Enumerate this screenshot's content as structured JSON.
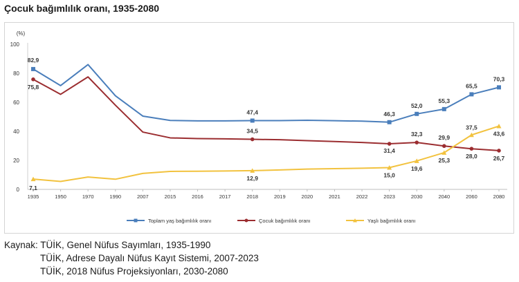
{
  "title": "Çocuk bağımlılık oranı, 1935-2080",
  "chart_data": {
    "type": "line",
    "unit_label": "(%)",
    "categories": [
      "1935",
      "1950",
      "1970",
      "1990",
      "2007",
      "2015",
      "2016",
      "2017",
      "2018",
      "2019",
      "2020",
      "2021",
      "2022",
      "2023",
      "2030",
      "2040",
      "2060",
      "2080"
    ],
    "ylim": [
      0,
      100
    ],
    "yticks": [
      0,
      20,
      40,
      60,
      80,
      100
    ],
    "grid": false,
    "legend_position": "bottom",
    "series": [
      {
        "name": "Toplam yaş bağımlılık oranı",
        "color": "#4a7ebb",
        "marker": "square",
        "values": [
          82.9,
          71.5,
          86.0,
          64.5,
          50.5,
          47.5,
          47.2,
          47.2,
          47.4,
          47.4,
          47.6,
          47.3,
          47.0,
          46.3,
          52.0,
          55.3,
          65.5,
          70.3
        ],
        "labels": [
          "82,9",
          null,
          null,
          null,
          null,
          null,
          null,
          null,
          "47,4",
          null,
          null,
          null,
          null,
          "46,3",
          "52,0",
          "55,3",
          "65,5",
          "70,3"
        ]
      },
      {
        "name": "Çocuk bağımlılık oranı",
        "color": "#9b2d30",
        "marker": "circle",
        "values": [
          75.8,
          65.5,
          77.5,
          58.0,
          39.5,
          35.5,
          35.0,
          34.8,
          34.5,
          34.2,
          33.6,
          33.0,
          32.3,
          31.4,
          32.3,
          29.9,
          28.0,
          26.7
        ],
        "labels": [
          "75,8",
          null,
          null,
          null,
          null,
          null,
          null,
          null,
          "34,5",
          null,
          null,
          null,
          null,
          "31,4",
          "32,3",
          "29,9",
          "28,0",
          "26,7"
        ]
      },
      {
        "name": "Yaşlı bağımlılık oranı",
        "color": "#f2c23e",
        "marker": "triangle",
        "values": [
          7.1,
          5.5,
          8.5,
          7.0,
          11.0,
          12.4,
          12.5,
          12.7,
          12.9,
          13.4,
          14.0,
          14.3,
          14.6,
          15.0,
          19.6,
          25.3,
          37.5,
          43.6
        ],
        "labels": [
          "7,1",
          null,
          null,
          null,
          null,
          null,
          null,
          null,
          "12,9",
          null,
          null,
          null,
          null,
          "15,0",
          "19,6",
          "25,3",
          "37,5",
          "43,6"
        ]
      }
    ]
  },
  "source": {
    "prefix": "Kaynak:",
    "lines": [
      "TÜİK, Genel Nüfus Sayımları, 1935-1990",
      "TÜİK, Adrese Dayalı Nüfus Kayıt Sistemi, 2007-2023",
      "TÜİK, 2018 Nüfus Projeksiyonları, 2030-2080"
    ]
  }
}
